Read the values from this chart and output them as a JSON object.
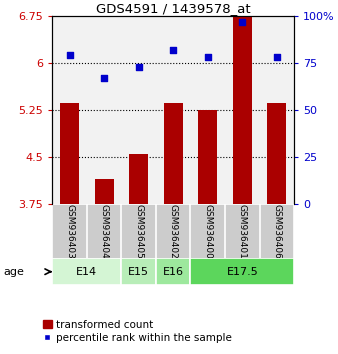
{
  "title": "GDS4591 / 1439578_at",
  "samples": [
    "GSM936403",
    "GSM936404",
    "GSM936405",
    "GSM936402",
    "GSM936400",
    "GSM936401",
    "GSM936406"
  ],
  "bar_values": [
    5.35,
    4.15,
    4.55,
    5.35,
    5.25,
    6.75,
    5.35
  ],
  "scatter_values": [
    79,
    67,
    73,
    82,
    78,
    97,
    78
  ],
  "bar_color": "#aa0000",
  "scatter_color": "#0000cc",
  "ylim_left": [
    3.75,
    6.75
  ],
  "ylim_right": [
    0,
    100
  ],
  "yticks_left": [
    3.75,
    4.5,
    5.25,
    6.0,
    6.75
  ],
  "yticks_right": [
    0,
    25,
    50,
    75,
    100
  ],
  "ytick_labels_left": [
    "3.75",
    "4.5",
    "5.25",
    "6",
    "6.75"
  ],
  "ytick_labels_right": [
    "0",
    "25",
    "50",
    "75",
    "100%"
  ],
  "hlines": [
    6.0,
    5.25,
    4.5
  ],
  "age_groups": [
    {
      "label": "E14",
      "start": 0,
      "end": 2,
      "color": "#d4f5d4"
    },
    {
      "label": "E15",
      "start": 2,
      "end": 3,
      "color": "#b8edb8"
    },
    {
      "label": "E16",
      "start": 3,
      "end": 4,
      "color": "#9de89d"
    },
    {
      "label": "E17.5",
      "start": 4,
      "end": 7,
      "color": "#5cd65c"
    }
  ],
  "legend_bar_label": "transformed count",
  "legend_scatter_label": "percentile rank within the sample",
  "age_label": "age",
  "bar_width": 0.55,
  "plot_bg": "#f2f2f2",
  "background_color": "#ffffff"
}
